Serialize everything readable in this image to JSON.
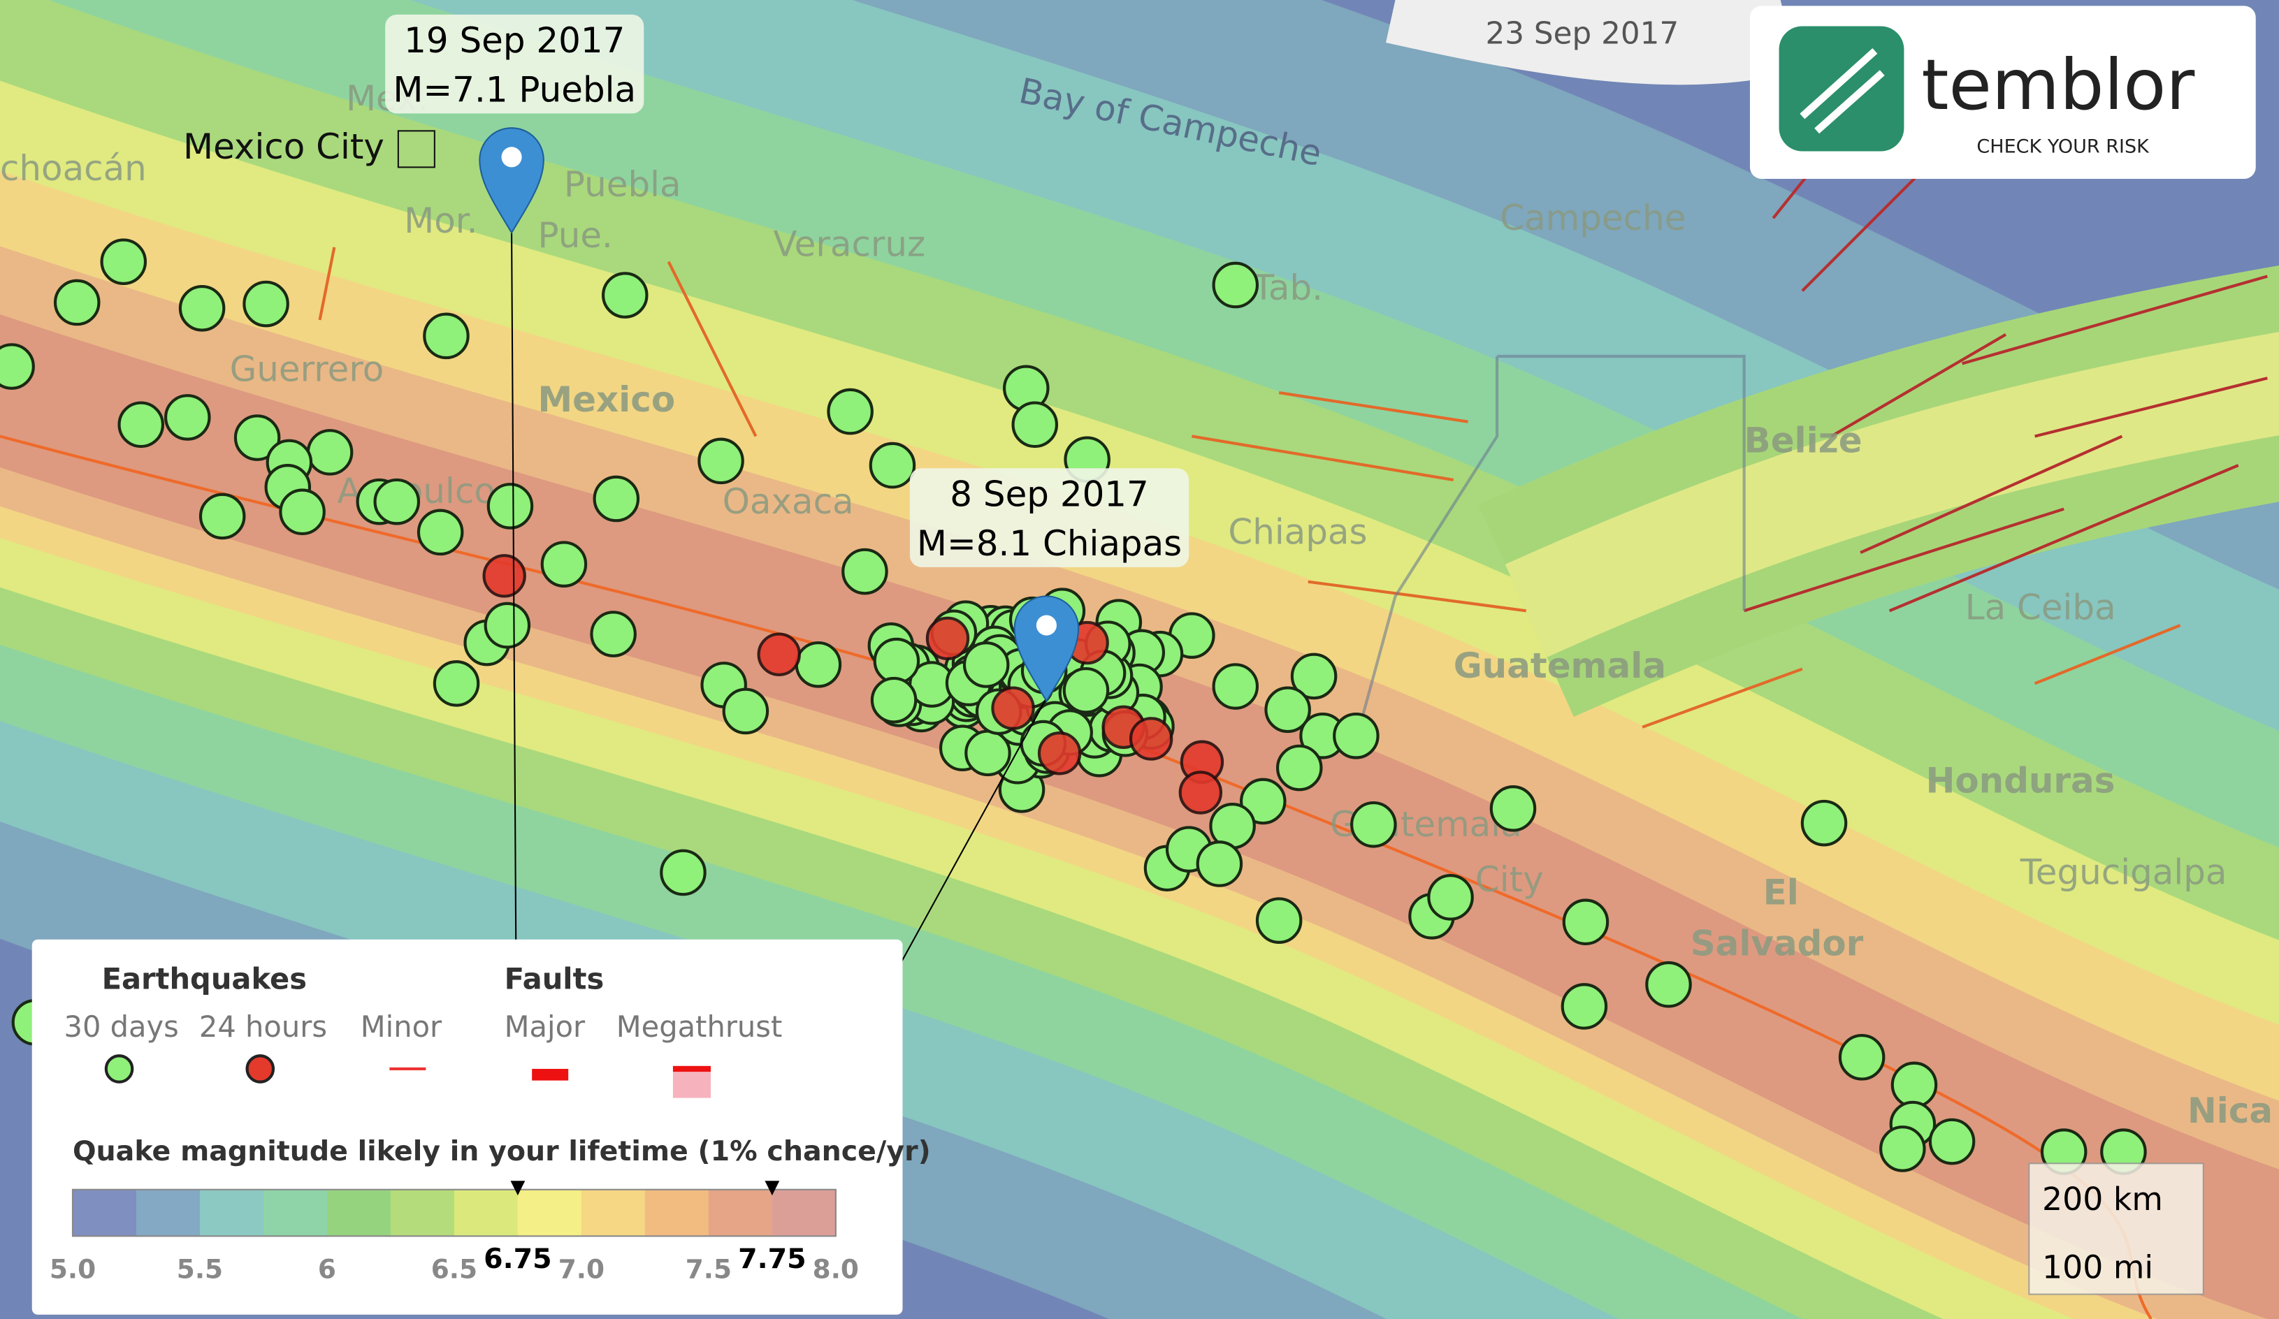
{
  "header": {
    "date": "23 Sep 2017",
    "logo": "temblor",
    "tagline": "CHECK YOUR RISK"
  },
  "callouts": [
    {
      "date": "19 Sep 2017",
      "event": "M=7.1 Puebla"
    },
    {
      "date": "8 Sep 2017",
      "event": "M=8.1 Chiapas"
    }
  ],
  "city_marker": "Mexico City",
  "places": [
    "choacán",
    "Mex.",
    "Puebla",
    "Mor.",
    "Pue.",
    "Veracruz",
    "Bay of Campeche",
    "Campeche",
    "Tab.",
    "Guerrero",
    "Mexico",
    "Acapulco",
    "Oaxaca",
    "Chiapas",
    "Belize",
    "La Ceiba",
    "Guatemala",
    "Honduras",
    "Guatemala",
    "City",
    "El",
    "Salvador",
    "Tegucigalpa",
    "Nica"
  ],
  "legend": {
    "earthquakes": "Earthquakes",
    "faults": "Faults",
    "items": [
      "30 days",
      "24 hours",
      "Minor",
      "Major",
      "Megathrust"
    ],
    "scale_title": "Quake magnitude likely in your lifetime  (1% chance/yr)",
    "range": [
      5,
      8
    ],
    "colors": [
      "#7f8fbf",
      "#84a9c4",
      "#8dc9c3",
      "#8ed4a8",
      "#96d37e",
      "#b4dc7a",
      "#dbe97c",
      "#f4ef86",
      "#f6d783",
      "#f2bc81",
      "#e5a586",
      "#dc9f98"
    ],
    "ticks": [
      {
        "value": 5,
        "label": "5.0"
      },
      5.5,
      6,
      6.5,
      {
        "value": 7,
        "label": "7.0"
      },
      7.5,
      {
        "value": 8,
        "label": "8.0"
      }
    ],
    "markers": [
      6.75,
      7.75
    ]
  },
  "scale_bar": [
    "200 km",
    "100 mi"
  ]
}
